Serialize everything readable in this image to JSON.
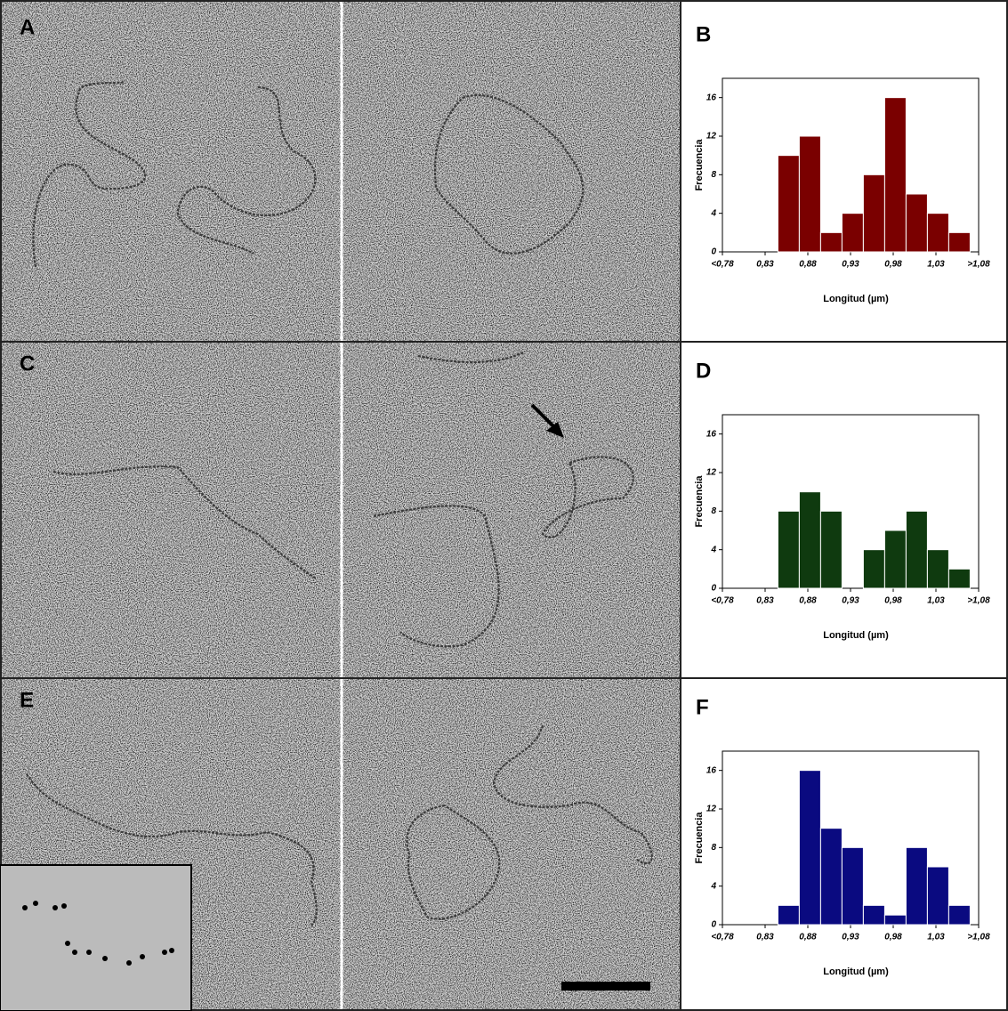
{
  "micrograph_labels": [
    "A",
    "C",
    "E"
  ],
  "chart_data": [
    {
      "type": "histogram",
      "panel": "B",
      "color": "#7a0000",
      "x_label": "Longitud (µm)",
      "y_label": "Frecuencia",
      "bins": [
        0.845,
        0.87,
        0.895,
        0.92,
        0.945,
        0.97,
        0.995,
        1.02,
        1.045,
        1.07
      ],
      "values": [
        10,
        12,
        2,
        4,
        8,
        16,
        6,
        4,
        2
      ],
      "xlim": [
        0.78,
        1.08
      ],
      "ylim": [
        0,
        18
      ],
      "xticks": [
        {
          "value": 0.78,
          "label": "<0,78"
        },
        {
          "value": 0.83,
          "label": "0,83"
        },
        {
          "value": 0.88,
          "label": "0,88"
        },
        {
          "value": 0.93,
          "label": "0,93"
        },
        {
          "value": 0.98,
          "label": "0,98"
        },
        {
          "value": 1.03,
          "label": "1,03"
        },
        {
          "value": 1.08,
          "label": ">1,08"
        }
      ],
      "yticks": [
        0,
        4,
        8,
        12,
        16
      ]
    },
    {
      "type": "histogram",
      "panel": "D",
      "color": "#0f3a0f",
      "x_label": "Longitud (µm)",
      "y_label": "Frecuencia",
      "bins": [
        0.845,
        0.87,
        0.895,
        0.92,
        0.945,
        0.97,
        0.995,
        1.02,
        1.045,
        1.07
      ],
      "values": [
        8,
        10,
        8,
        0,
        4,
        6,
        8,
        4,
        2
      ],
      "xlim": [
        0.78,
        1.08
      ],
      "ylim": [
        0,
        18
      ],
      "xticks": [
        {
          "value": 0.78,
          "label": "<0,78"
        },
        {
          "value": 0.83,
          "label": "0,83"
        },
        {
          "value": 0.88,
          "label": "0,88"
        },
        {
          "value": 0.93,
          "label": "0,93"
        },
        {
          "value": 0.98,
          "label": "0,98"
        },
        {
          "value": 1.03,
          "label": "1,03"
        },
        {
          "value": 1.08,
          "label": ">1,08"
        }
      ],
      "yticks": [
        0,
        4,
        8,
        12,
        16
      ]
    },
    {
      "type": "histogram",
      "panel": "F",
      "color": "#0a0a80",
      "x_label": "Longitud (µm)",
      "y_label": "Frecuencia",
      "bins": [
        0.845,
        0.87,
        0.895,
        0.92,
        0.945,
        0.97,
        0.995,
        1.02,
        1.045,
        1.07
      ],
      "values": [
        2,
        16,
        10,
        8,
        2,
        1,
        8,
        6,
        2
      ],
      "xlim": [
        0.78,
        1.08
      ],
      "ylim": [
        0,
        18
      ],
      "xticks": [
        {
          "value": 0.78,
          "label": "<0,78"
        },
        {
          "value": 0.83,
          "label": "0,83"
        },
        {
          "value": 0.88,
          "label": "0,88"
        },
        {
          "value": 0.93,
          "label": "0,93"
        },
        {
          "value": 0.98,
          "label": "0,98"
        },
        {
          "value": 1.03,
          "label": "1,03"
        },
        {
          "value": 1.08,
          "label": ">1,08"
        }
      ],
      "yticks": [
        0,
        4,
        8,
        12,
        16
      ]
    }
  ]
}
